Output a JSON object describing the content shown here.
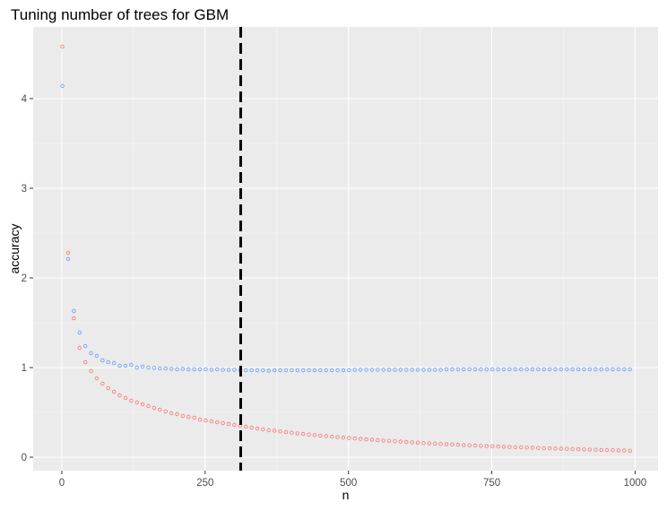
{
  "chart_data": {
    "type": "scatter",
    "title": "Tuning number of trees for GBM",
    "xlabel": "n",
    "ylabel": "accuracy",
    "xlim": [
      -50,
      1040
    ],
    "ylim": [
      -0.15,
      4.8
    ],
    "x_ticks": [
      0,
      250,
      500,
      750,
      1000
    ],
    "x_tick_labels": [
      "0",
      "250",
      "500",
      "750",
      "1000"
    ],
    "y_ticks": [
      0,
      1,
      2,
      3,
      4
    ],
    "y_tick_labels": [
      "0",
      "1",
      "2",
      "3",
      "4"
    ],
    "grid": true,
    "legend": "none",
    "vline": {
      "x": 312,
      "style": "dashed",
      "color": "#000000"
    },
    "series": [
      {
        "color": "#f8766d",
        "x": [
          1,
          11,
          21,
          31,
          41,
          51,
          61,
          71,
          81,
          91,
          101,
          111,
          121,
          131,
          141,
          151,
          161,
          171,
          181,
          191,
          201,
          211,
          221,
          231,
          241,
          251,
          261,
          271,
          281,
          291,
          301,
          311,
          321,
          331,
          341,
          351,
          361,
          371,
          381,
          391,
          401,
          411,
          421,
          431,
          441,
          451,
          461,
          471,
          481,
          491,
          501,
          511,
          521,
          531,
          541,
          551,
          561,
          571,
          581,
          591,
          601,
          611,
          621,
          631,
          641,
          651,
          661,
          671,
          681,
          691,
          701,
          711,
          721,
          731,
          741,
          751,
          761,
          771,
          781,
          791,
          801,
          811,
          821,
          831,
          841,
          851,
          861,
          871,
          881,
          891,
          901,
          911,
          921,
          931,
          941,
          951,
          961,
          971,
          981,
          991
        ],
        "y": [
          4.58,
          2.28,
          1.55,
          1.22,
          1.06,
          0.96,
          0.88,
          0.82,
          0.77,
          0.73,
          0.69,
          0.66,
          0.63,
          0.61,
          0.59,
          0.57,
          0.55,
          0.53,
          0.51,
          0.49,
          0.48,
          0.46,
          0.45,
          0.44,
          0.42,
          0.41,
          0.4,
          0.39,
          0.38,
          0.37,
          0.36,
          0.35,
          0.34,
          0.33,
          0.32,
          0.31,
          0.3,
          0.295,
          0.288,
          0.28,
          0.273,
          0.266,
          0.259,
          0.253,
          0.247,
          0.241,
          0.235,
          0.229,
          0.224,
          0.219,
          0.214,
          0.209,
          0.204,
          0.199,
          0.195,
          0.19,
          0.186,
          0.182,
          0.178,
          0.174,
          0.17,
          0.166,
          0.162,
          0.158,
          0.155,
          0.152,
          0.148,
          0.145,
          0.142,
          0.139,
          0.136,
          0.133,
          0.13,
          0.127,
          0.124,
          0.122,
          0.119,
          0.117,
          0.114,
          0.112,
          0.11,
          0.108,
          0.105,
          0.103,
          0.101,
          0.099,
          0.097,
          0.095,
          0.093,
          0.091,
          0.089,
          0.087,
          0.085,
          0.083,
          0.081,
          0.08,
          0.078,
          0.076,
          0.074,
          0.072
        ]
      },
      {
        "color": "#619cff",
        "x": [
          1,
          11,
          21,
          31,
          41,
          51,
          61,
          71,
          81,
          91,
          101,
          111,
          121,
          131,
          141,
          151,
          161,
          171,
          181,
          191,
          201,
          211,
          221,
          231,
          241,
          251,
          261,
          271,
          281,
          291,
          301,
          311,
          321,
          331,
          341,
          351,
          361,
          371,
          381,
          391,
          401,
          411,
          421,
          431,
          441,
          451,
          461,
          471,
          481,
          491,
          501,
          511,
          521,
          531,
          541,
          551,
          561,
          571,
          581,
          591,
          601,
          611,
          621,
          631,
          641,
          651,
          661,
          671,
          681,
          691,
          701,
          711,
          721,
          731,
          741,
          751,
          761,
          771,
          781,
          791,
          801,
          811,
          821,
          831,
          841,
          851,
          861,
          871,
          881,
          891,
          901,
          911,
          921,
          931,
          941,
          951,
          961,
          971,
          981,
          991
        ],
        "y": [
          4.14,
          2.21,
          1.63,
          1.39,
          1.24,
          1.16,
          1.13,
          1.08,
          1.06,
          1.05,
          1.02,
          1.02,
          1.03,
          1.0,
          1.01,
          1.0,
          0.995,
          0.99,
          0.99,
          0.985,
          0.98,
          0.985,
          0.98,
          0.98,
          0.98,
          0.98,
          0.975,
          0.98,
          0.975,
          0.975,
          0.975,
          0.97,
          0.97,
          0.97,
          0.97,
          0.97,
          0.965,
          0.97,
          0.97,
          0.97,
          0.97,
          0.97,
          0.97,
          0.97,
          0.97,
          0.97,
          0.97,
          0.97,
          0.97,
          0.97,
          0.97,
          0.975,
          0.975,
          0.975,
          0.975,
          0.975,
          0.975,
          0.975,
          0.975,
          0.975,
          0.975,
          0.975,
          0.975,
          0.975,
          0.975,
          0.975,
          0.975,
          0.98,
          0.98,
          0.98,
          0.98,
          0.98,
          0.98,
          0.98,
          0.98,
          0.98,
          0.98,
          0.98,
          0.98,
          0.98,
          0.98,
          0.98,
          0.98,
          0.98,
          0.98,
          0.98,
          0.98,
          0.98,
          0.98,
          0.98,
          0.98,
          0.98,
          0.98,
          0.98,
          0.98,
          0.98,
          0.98,
          0.98,
          0.98,
          0.98
        ]
      }
    ]
  }
}
